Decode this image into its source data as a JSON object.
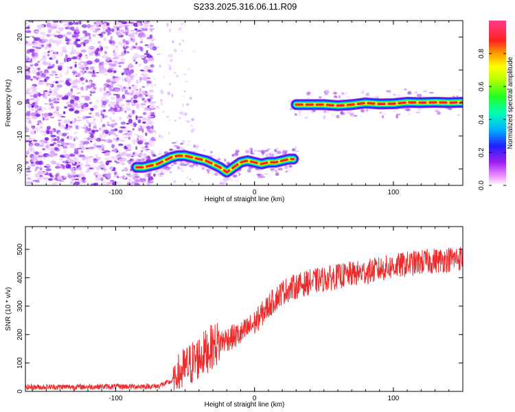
{
  "title": "S233.2025.316.06.11.R09",
  "chart_data": [
    {
      "type": "heatmap",
      "name": "spectrogram",
      "xlabel": "Height of straight line (km)",
      "ylabel": "Frequency (Hz)",
      "xlim": [
        -165,
        150
      ],
      "ylim": [
        -25,
        25
      ],
      "xticks": [
        -100,
        0,
        100
      ],
      "xtick_labels": [
        "-100",
        "0",
        "100"
      ],
      "yticks": [
        20,
        10,
        0,
        -10,
        -20
      ],
      "ytick_labels": [
        "20",
        "10",
        "0",
        "-10",
        "-20"
      ],
      "colorbar": {
        "label": "Normalized spectral amplitude",
        "range": [
          0.0,
          1.0
        ],
        "ticks": [
          0.0,
          0.2,
          0.4,
          0.6,
          0.8
        ],
        "tick_labels": [
          "0.0",
          "0.2",
          "0.4",
          "0.6",
          "0.8"
        ],
        "colors": [
          "#ffffff",
          "#ea8cff",
          "#8a2be2",
          "#2a2aff",
          "#00c8ff",
          "#00ff80",
          "#7cff00",
          "#ffff00",
          "#ffa000",
          "#ff2020",
          "#ff3c8c"
        ]
      },
      "noise_region_x": [
        -165,
        -72
      ],
      "ridge_low": {
        "x": [
          -85,
          -80,
          -75,
          -70,
          -65,
          -60,
          -55,
          -50,
          -45,
          -40,
          -35,
          -30,
          -25,
          -20,
          -15,
          -10,
          -5,
          0,
          5,
          10,
          15,
          20,
          25,
          28
        ],
        "y": [
          -19.5,
          -19.5,
          -19,
          -18.5,
          -17.5,
          -16.5,
          -16,
          -16,
          -16.5,
          -17,
          -17.5,
          -18.5,
          -19.5,
          -21,
          -19.5,
          -18,
          -17.5,
          -18,
          -18.5,
          -18,
          -18,
          -17.5,
          -17,
          -17
        ]
      },
      "ridge_high": {
        "x": [
          30,
          40,
          50,
          60,
          70,
          80,
          90,
          100,
          110,
          120,
          130,
          140,
          150
        ],
        "y": [
          -0.5,
          -0.5,
          -0.5,
          -0.8,
          -0.5,
          0,
          -0.3,
          -0.2,
          0.2,
          0.1,
          0.2,
          0.1,
          0.2
        ]
      }
    },
    {
      "type": "line",
      "name": "snr",
      "xlabel": "Height of straight line (km)",
      "ylabel": "SNR (10 * v/v)",
      "xlim": [
        -165,
        150
      ],
      "ylim": [
        0,
        580
      ],
      "xticks": [
        -100,
        0,
        100
      ],
      "xtick_labels": [
        "-100",
        "0",
        "100"
      ],
      "yticks": [
        0,
        100,
        200,
        300,
        400,
        500
      ],
      "ytick_labels": [
        "0",
        "100",
        "200",
        "300",
        "400",
        "500"
      ],
      "series": [
        {
          "name": "SNR",
          "color": "#ee2a2a",
          "trend_x": [
            -165,
            -70,
            -60,
            -50,
            -40,
            -30,
            -20,
            -10,
            0,
            10,
            20,
            30,
            40,
            60,
            80,
            100,
            120,
            150
          ],
          "trend_y": [
            15,
            18,
            35,
            80,
            120,
            160,
            185,
            200,
            240,
            300,
            350,
            370,
            385,
            405,
            420,
            440,
            455,
            470
          ],
          "noise_amplitude": 45
        }
      ]
    }
  ]
}
